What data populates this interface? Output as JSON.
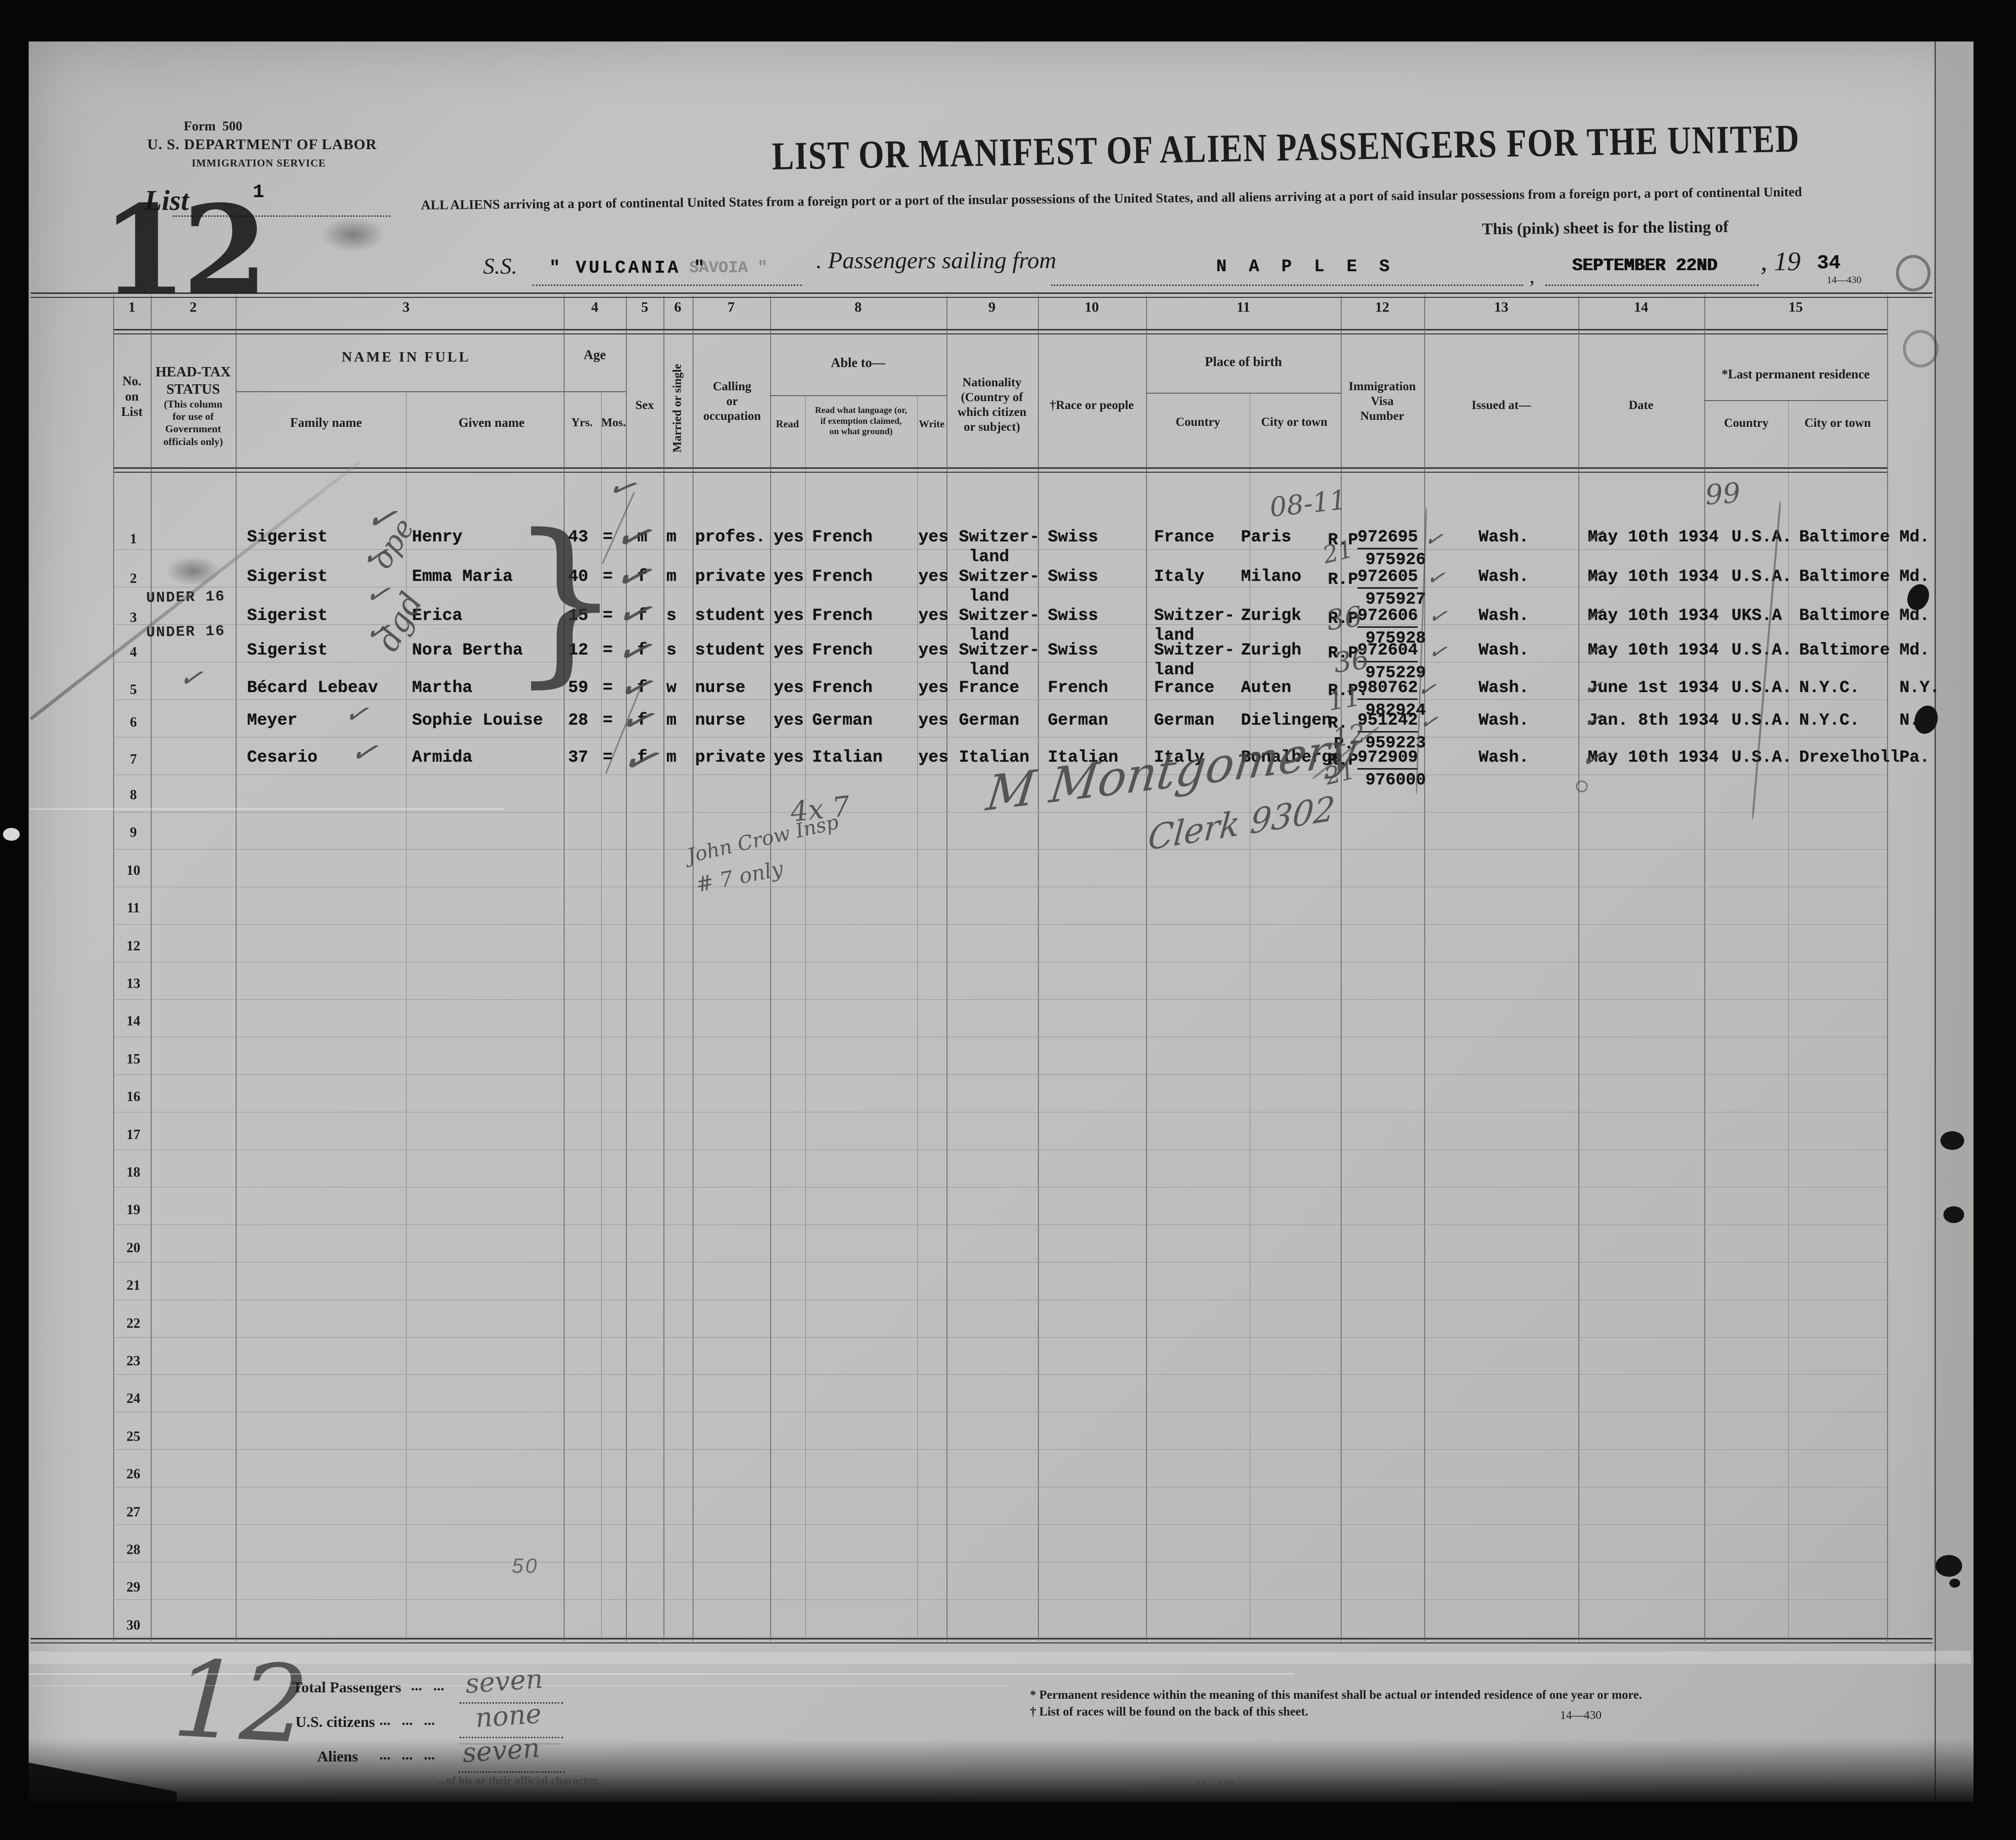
{
  "form": {
    "form_no": "Form  500",
    "dept": "U. S. DEPARTMENT OF LABOR",
    "service": "IMMIGRATION SERVICE",
    "list_label": "List",
    "list_no": "1",
    "sheet_stamp": "12",
    "header_form_code": "14—430"
  },
  "title": {
    "main": "LIST OR MANIFEST OF ALIEN PASSENGERS FOR THE UNITED",
    "intro": "ALL ALIENS arriving at a port of continental United States from a foreign port or a port of the  insular  possessions of the  United  States, and all aliens arriving at a port of said insular possessions from a foreign port, a port of continental United",
    "intro2": "This  (pink)  sheet  is  for  the  listing  of"
  },
  "voyage": {
    "ss_label": "S.S.",
    "ship_name": "\" VULCANIA \"",
    "ship_ghost": "SAVOIA \"",
    "sailing_label": ". Passengers sailing from",
    "port": "N A P L E S",
    "comma": ",",
    "sail_date": "SEPTEMBER 22ND",
    "year_prefix": ", 19",
    "year": "34"
  },
  "table": {
    "column_numbers": [
      "1",
      "2",
      "3",
      "4",
      "5",
      "6",
      "7",
      "8",
      "9",
      "10",
      "11",
      "12",
      "13",
      "14",
      "15"
    ],
    "headers": {
      "c1": "No.\non\nList",
      "c2a": "HEAD-TAX\nSTATUS",
      "c2b": "(This column\nfor use of\nGovernment\nofficials only)",
      "c3a": "NAME IN FULL",
      "c3b": "Family name",
      "c3c": "Given name",
      "c4a": "Age",
      "c4b": "Yrs.",
      "c4c": "Mos.",
      "c5": "Sex",
      "c6": "Married or single",
      "c7": "Calling\nor\noccupation",
      "c8a": "Able to—",
      "c8b": "Read",
      "c8c": "Read what language (or,\nif exemption claimed,\non what ground)",
      "c8d": "Write",
      "c9": "Nationality\n(Country of\nwhich citizen\nor subject)",
      "c10": "†Race or people",
      "c11a": "Place of birth",
      "c11b": "Country",
      "c11c": "City or town",
      "c12": "Immigration\nVisa\nNumber",
      "c13": "Issued at—",
      "c14": "Date",
      "c15a": "*Last permanent residence",
      "c15b": "Country",
      "c15c": "City or town"
    },
    "row_numbers": [
      "1",
      "2",
      "3",
      "4",
      "5",
      "6",
      "7",
      "8",
      "9",
      "10",
      "11",
      "12",
      "13",
      "14",
      "15",
      "16",
      "17",
      "18",
      "19",
      "20",
      "21",
      "22",
      "23",
      "24",
      "25",
      "26",
      "27",
      "28",
      "29",
      "30"
    ],
    "passengers": [
      {
        "no": "1",
        "headtax": "",
        "family": "Sigerist",
        "given": "Henry",
        "yrs": "43",
        "mos": "=",
        "sex": "m",
        "married": "m",
        "calling": "profes.",
        "read": "yes",
        "language": "French",
        "write": "yes",
        "nationality": "Switzer-\n land",
        "race": "Swiss",
        "birth_country": "France",
        "birth_city": "Paris",
        "visa_prefix": "R.P",
        "visa_num1": "972695",
        "visa_prefix2": "",
        "visa_num2": "975926",
        "issued": "Wash.",
        "date": "May 10th 1934",
        "res_country": "U.S.A.",
        "res_city": "Baltimore",
        "res_state": "Md."
      },
      {
        "no": "2",
        "headtax": "",
        "family": "Sigerist",
        "given": "Emma Maria",
        "yrs": "40",
        "mos": "=",
        "sex": "f",
        "married": "m",
        "calling": "private",
        "read": "yes",
        "language": "French",
        "write": "yes",
        "nationality": "Switzer-\n land",
        "race": "Swiss",
        "birth_country": "Italy",
        "birth_city": "Milano",
        "visa_prefix": "R.P",
        "visa_num1": "972605",
        "visa_prefix2": "",
        "visa_num2": "975927",
        "issued": "Wash.",
        "date": "May 10th 1934",
        "res_country": "U.S.A.",
        "res_city": "Baltimore",
        "res_state": "Md."
      },
      {
        "no": "3",
        "headtax": "UNDER 16",
        "family": "Sigerist",
        "given": "Erica",
        "yrs": "15",
        "mos": "=",
        "sex": "f",
        "married": "s",
        "calling": "student",
        "read": "yes",
        "language": "French",
        "write": "yes",
        "nationality": "Switzer-\n land",
        "race": "Swiss",
        "birth_country": "Switzer-\nland",
        "birth_city": "Zurigk",
        "visa_prefix": "R.P",
        "visa_num1": "972606",
        "visa_prefix2": "",
        "visa_num2": "975928",
        "issued": "Wash.",
        "date": "May 10th 1934",
        "res_country": "UKS.A",
        "res_city": "Baltimore",
        "res_state": "Md."
      },
      {
        "no": "4",
        "headtax": "UNDER 16",
        "family": "Sigerist",
        "given": "Nora Bertha",
        "yrs": "12",
        "mos": "=",
        "sex": "f",
        "married": "s",
        "calling": "student",
        "read": "yes",
        "language": "French",
        "write": "yes",
        "nationality": "Switzer-\n land",
        "race": "Swiss",
        "birth_country": "Switzer-\nland",
        "birth_city": "Zurigh",
        "visa_prefix": "R.P",
        "visa_num1": "972604",
        "visa_prefix2": "",
        "visa_num2": "975229",
        "issued": "Wash.",
        "date": "May 10th 1934",
        "res_country": "U.S.A.",
        "res_city": "Baltimore",
        "res_state": "Md."
      },
      {
        "no": "5",
        "headtax": "",
        "family": "Bécard Lebeav",
        "given": "Martha",
        "yrs": "59",
        "mos": "=",
        "sex": "f",
        "married": "w",
        "calling": "nurse",
        "read": "yes",
        "language": "French",
        "write": "yes",
        "nationality": "France",
        "race": "French",
        "birth_country": "France",
        "birth_city": "Auten",
        "visa_prefix": "R.P.",
        "visa_num1": "980762",
        "visa_prefix2": "",
        "visa_num2": "982924",
        "issued": "Wash.",
        "date": "June 1st 1934",
        "res_country": "U.S.A.",
        "res_city": "N.Y.C.",
        "res_state": "N.Y."
      },
      {
        "no": "6",
        "headtax": "",
        "family": "Meyer",
        "given": "Sophie Louise",
        "yrs": "28",
        "mos": "=",
        "sex": "f",
        "married": "m",
        "calling": "nurse",
        "read": "yes",
        "language": "German",
        "write": "yes",
        "nationality": "German",
        "race": "German",
        "birth_country": "German",
        "birth_city": "Dielingen",
        "visa_prefix": "R.",
        "visa_num1": "951242",
        "visa_prefix2": "P.",
        "visa_num2": "959223",
        "issued": "Wash.",
        "date": "Jan. 8th 1934",
        "res_country": "U.S.A.",
        "res_city": "N.Y.C.",
        "res_state": "N.Y"
      },
      {
        "no": "7",
        "headtax": "",
        "family": "Cesario",
        "given": "Armida",
        "yrs": "37",
        "mos": "=",
        "sex": "f",
        "married": "m",
        "calling": "private",
        "read": "yes",
        "language": "Italian",
        "write": "yes",
        "nationality": "Italian",
        "race": "Italian",
        "birth_country": "Italy",
        "birth_city": "Bonalbergo",
        "visa_prefix": "R.P",
        "visa_num1": "972909",
        "visa_prefix2": "",
        "visa_num2": "976000",
        "issued": "Wash.",
        "date": "May 10th 1934",
        "res_country": "U.S.A.",
        "res_city": "Drexelholl",
        "res_state": "Pa."
      }
    ]
  },
  "annotations": {
    "a0811": "08-11",
    "a21a": "21",
    "a36a": "36",
    "a36b": "36",
    "a11": "11",
    "a12": "12",
    "a21b": "21",
    "a99": "99",
    "aope": "ope",
    "adgd": "dgd",
    "aex7": "4x 7",
    "ajohn": "John Crow Insp",
    "a7only": "# 7 only",
    "asig": "M Montgomery",
    "aclerk": "Clerk 9302",
    "aseven1": "seven",
    "anone": "none",
    "aseven2": "seven",
    "abig12": "12",
    "a50": "50"
  },
  "glyphs": {
    "check": "✓",
    "brace": "}"
  },
  "totals": {
    "label1": "Total Passengers",
    "dots1": "...   ...",
    "label2": "U.S. citizens",
    "dots2": "...   ...   ...",
    "label3": "Aliens",
    "dots3": "...   ...   ..."
  },
  "footnotes": {
    "fn1": "* Permanent residence within the meaning of this manifest shall be actual or intended residence of one year or more.",
    "fn2": "† List of races will be found on the back of this sheet.",
    "code": "14—430"
  },
  "bottom_edge": {
    "faint_text": "...of his or their official character.",
    "code": "14—430"
  }
}
